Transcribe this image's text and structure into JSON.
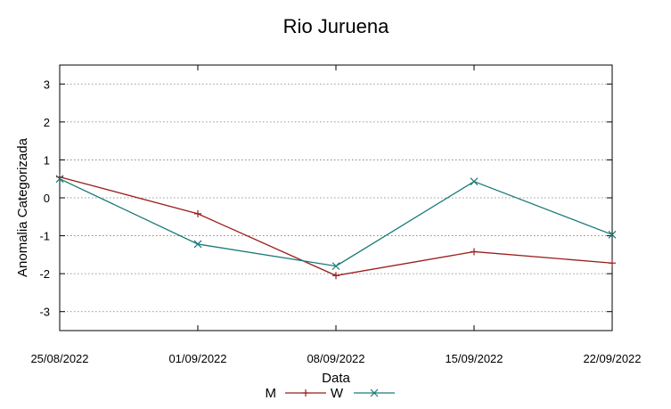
{
  "chart_data": {
    "type": "line",
    "title": "Rio Juruena",
    "xlabel": "Data",
    "ylabel": "Anomalia Categorizada",
    "categories": [
      "25/08/2022",
      "01/09/2022",
      "08/09/2022",
      "15/09/2022",
      "22/09/2022"
    ],
    "yticks": [
      "3",
      "2",
      "1",
      "0",
      "-1",
      "-2",
      "-3"
    ],
    "ylim": [
      -3.5,
      3.5
    ],
    "grid": "horizontal dotted",
    "legend_position": "bottom",
    "series": [
      {
        "name": "M",
        "color": "#9b1c1c",
        "marker": "plus",
        "values": [
          0.55,
          -0.42,
          -2.05,
          -1.42,
          -1.72
        ]
      },
      {
        "name": "W",
        "color": "#1a7a78",
        "marker": "cross",
        "values": [
          0.5,
          -1.22,
          -1.8,
          0.43,
          -0.97
        ]
      }
    ]
  }
}
